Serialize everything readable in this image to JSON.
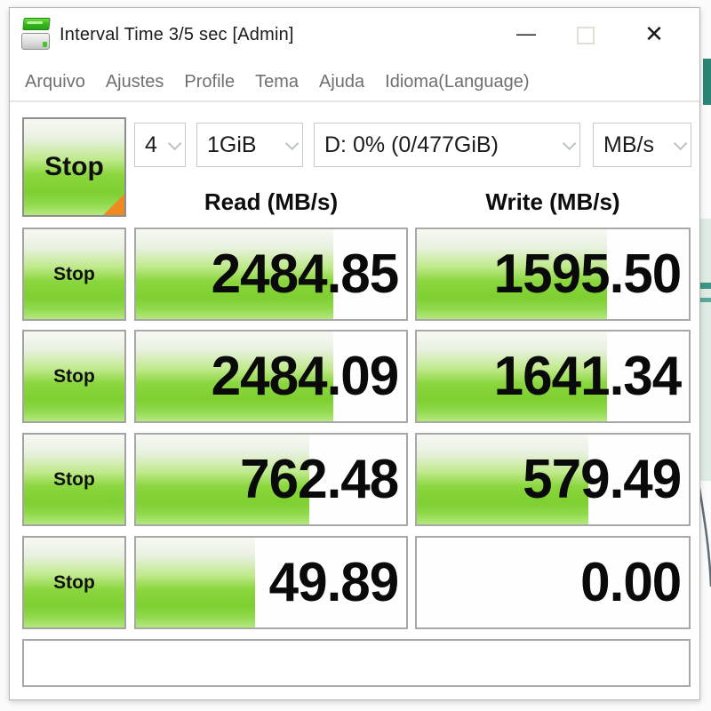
{
  "window": {
    "title": "Interval Time 3/5 sec [Admin]",
    "controls": {
      "minimize_glyph": "—",
      "close_glyph": "✕"
    }
  },
  "menu": {
    "items": [
      "Arquivo",
      "Ajustes",
      "Profile",
      "Tema",
      "Ajuda",
      "Idioma(Language)"
    ]
  },
  "toolbar": {
    "stop_label": "Stop",
    "test_count": "4",
    "test_size": "1GiB",
    "target_drive": "D: 0% (0/477GiB)",
    "unit": "MB/s"
  },
  "results": {
    "read_header": "Read (MB/s)",
    "write_header": "Write (MB/s)",
    "rows": [
      {
        "button": "Stop",
        "read": "2484.85",
        "write": "1595.50",
        "read_fill": 73,
        "write_fill": 70
      },
      {
        "button": "Stop",
        "read": "2484.09",
        "write": "1641.34",
        "read_fill": 73,
        "write_fill": 70
      },
      {
        "button": "Stop",
        "read": "762.48",
        "write": "579.49",
        "read_fill": 64,
        "write_fill": 63
      },
      {
        "button": "Stop",
        "read": "49.89",
        "write": "0.00",
        "read_fill": 44,
        "write_fill": 0
      }
    ]
  },
  "status_bar": {
    "text": ""
  },
  "colors": {
    "fill_green": "#7ecf31",
    "accent_orange": "#ef8a20",
    "background_teal": "#2a8577"
  }
}
